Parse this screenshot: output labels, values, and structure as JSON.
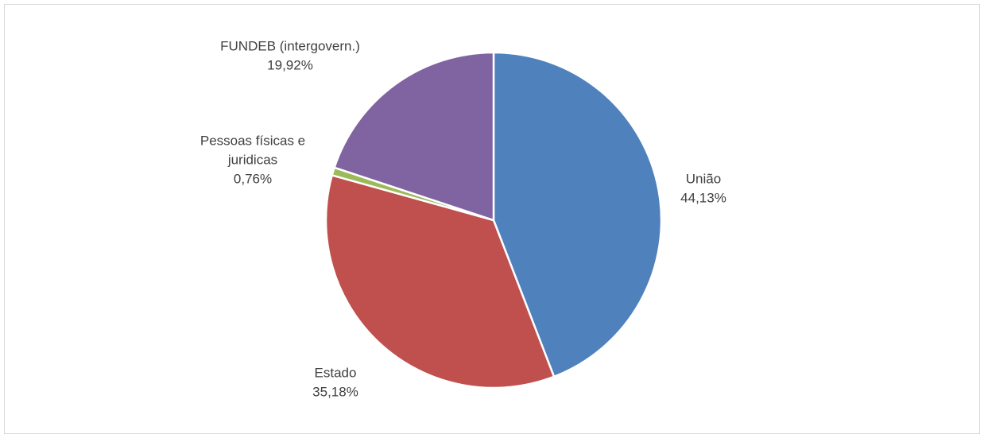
{
  "chart_data": {
    "type": "pie",
    "slices": [
      {
        "label": "União",
        "value": 44.13,
        "value_label": "44,13%",
        "color": "#4f81bd"
      },
      {
        "label": "Estado",
        "value": 35.18,
        "value_label": "35,18%",
        "color": "#c0504d"
      },
      {
        "label": "Pessoas físicas e juridicas",
        "label_lines": [
          "Pessoas físicas e",
          "juridicas"
        ],
        "value": 0.76,
        "value_label": "0,76%",
        "color": "#9bbb59"
      },
      {
        "label": "FUNDEB (intergovern.)",
        "value": 19.92,
        "value_label": "19,92%",
        "color": "#8064a2"
      }
    ],
    "start": "12 o'clock",
    "direction": "clockwise",
    "legend": "none",
    "data_labels": "outside"
  }
}
